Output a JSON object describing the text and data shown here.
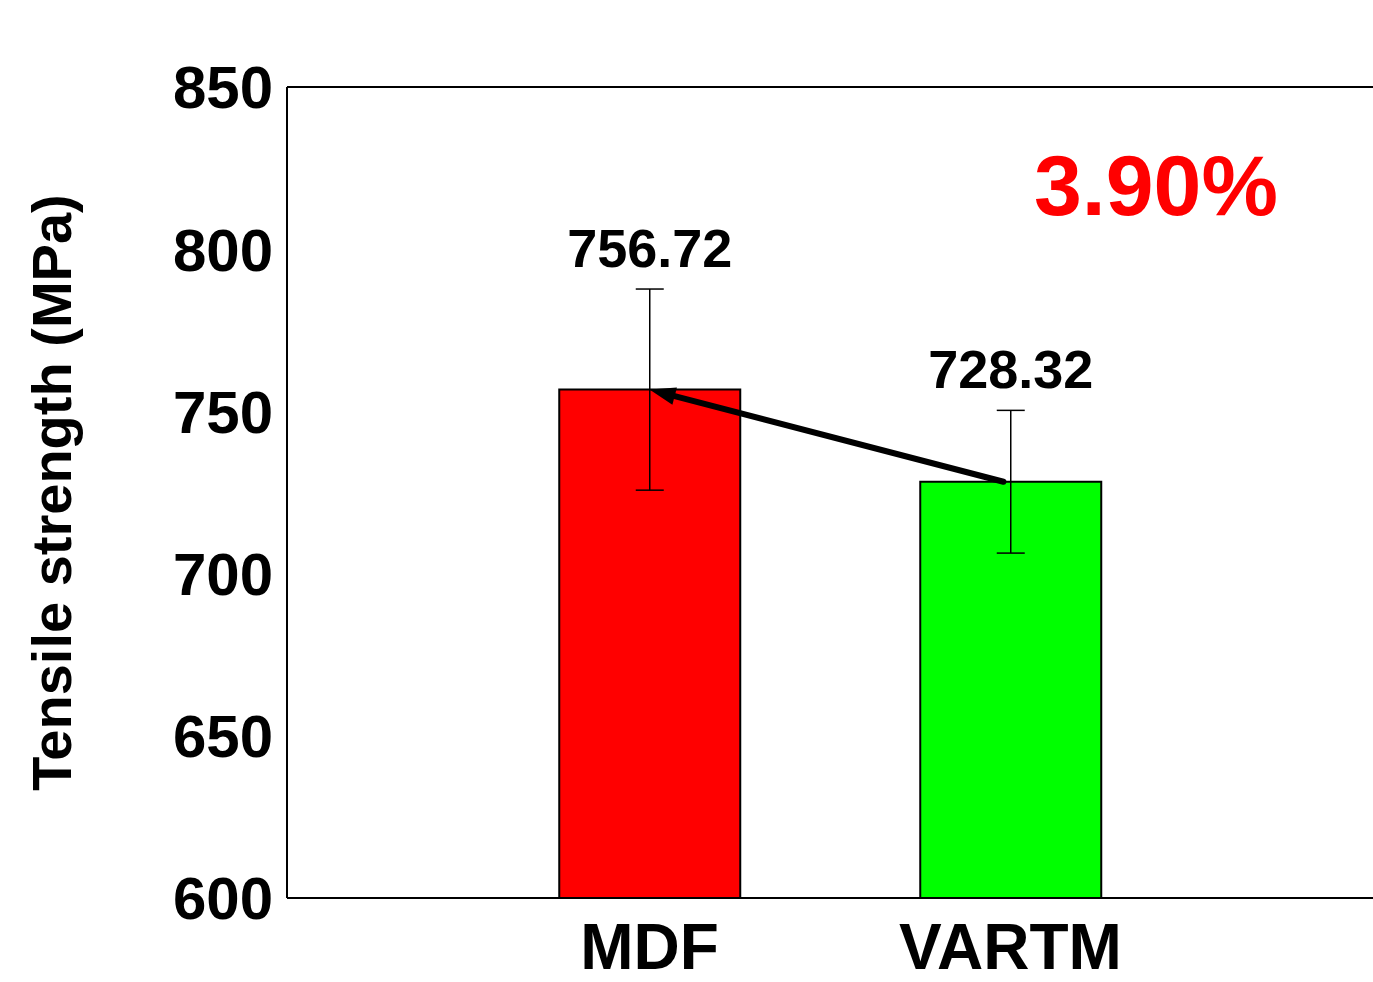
{
  "chart_data": {
    "type": "bar",
    "ylabel": "Tensile strength (MPa)",
    "categories": [
      "MDF",
      "VARTM"
    ],
    "values": [
      756.72,
      728.32
    ],
    "colors": [
      "#ff0000",
      "#00ff00"
    ],
    "errors": [
      31,
      22
    ],
    "data_labels": true,
    "ylim": [
      600,
      850
    ],
    "yticks": [
      600,
      650,
      700,
      750,
      800,
      850
    ],
    "annotations": [
      "3.90%"
    ]
  }
}
